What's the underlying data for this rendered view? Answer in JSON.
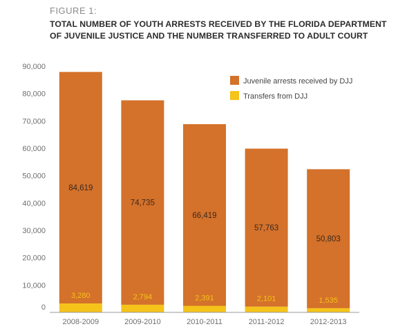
{
  "figure": {
    "label": "FIGURE 1:",
    "title": "TOTAL NUMBER OF YOUTH ARRESTS RECEIVED BY THE FLORIDA DEPARTMENT OF JUVENILE JUSTICE AND THE NUMBER TRANSFERRED TO ADULT COURT"
  },
  "chart_data": {
    "type": "bar",
    "stacked": true,
    "categories": [
      "2008-2009",
      "2009-2010",
      "2010-2011",
      "2011-2012",
      "2012-2013"
    ],
    "series": [
      {
        "name": "Transfers from DJJ",
        "values": [
          3280,
          2794,
          2391,
          2101,
          1535
        ],
        "color": "#f5c31a"
      },
      {
        "name": "Juvenile arrests received by DJJ",
        "values": [
          84619,
          74735,
          66419,
          57763,
          50803
        ],
        "color": "#d4712a"
      }
    ],
    "data_labels": {
      "Transfers from DJJ": [
        "3,280",
        "2,794",
        "2,391",
        "2,101",
        "1,535"
      ],
      "Juvenile arrests received by DJJ": [
        "84,619",
        "74,735",
        "66,419",
        "57,763",
        "50,803"
      ]
    },
    "y_ticks": [
      0,
      10000,
      20000,
      30000,
      40000,
      50000,
      60000,
      70000,
      80000,
      90000
    ],
    "y_tick_labels": [
      "0",
      "10,000",
      "20,000",
      "30,000",
      "40,000",
      "50,000",
      "60,000",
      "70,000",
      "80,000",
      "90,000"
    ],
    "ylim": [
      0,
      90000
    ],
    "grid": false,
    "legend_position": "top-right",
    "legend": [
      {
        "label": "Juvenile arrests received by DJJ",
        "color": "#d4712a"
      },
      {
        "label": "Transfers from DJJ",
        "color": "#f5c31a"
      }
    ],
    "colors": {
      "axis": "#9a9a9a",
      "tick_text": "#6e6e6e",
      "label_on_bar": "#3a2a20",
      "label_on_transfer": "#f5c31a"
    }
  }
}
